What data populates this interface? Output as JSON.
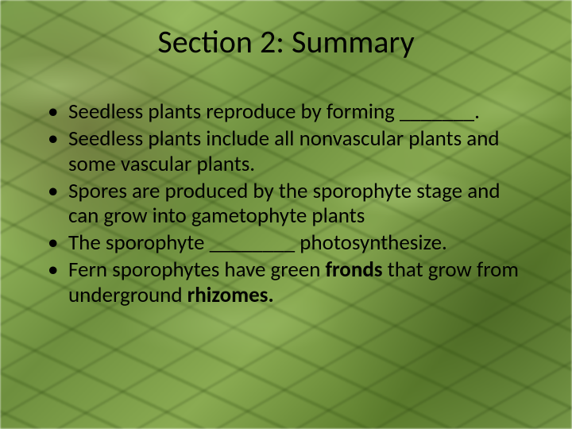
{
  "title": "Section 2: Summary",
  "bullets": [
    {
      "html": "Seedless plants reproduce by forming _______."
    },
    {
      "html": "Seedless plants include all nonvascular plants and some vascular plants."
    },
    {
      "html": "Spores are produced by the sporophyte stage and can grow into gametophyte plants"
    },
    {
      "html": "The sporophyte ________ photosynthesize."
    },
    {
      "html": "Fern sporophytes have green <span class=\"b\">fronds</span> that grow from underground <span class=\"b\">rhizomes.</span>"
    }
  ],
  "style": {
    "slide_width": 720,
    "slide_height": 540,
    "title_fontsize": 40,
    "bullet_fontsize": 27,
    "text_color": "#000000",
    "background_palette": [
      "#7a9b4a",
      "#96b85e",
      "#6e8f3e",
      "#8aab52",
      "#5d7e2d"
    ],
    "font_family": "Calibri"
  }
}
